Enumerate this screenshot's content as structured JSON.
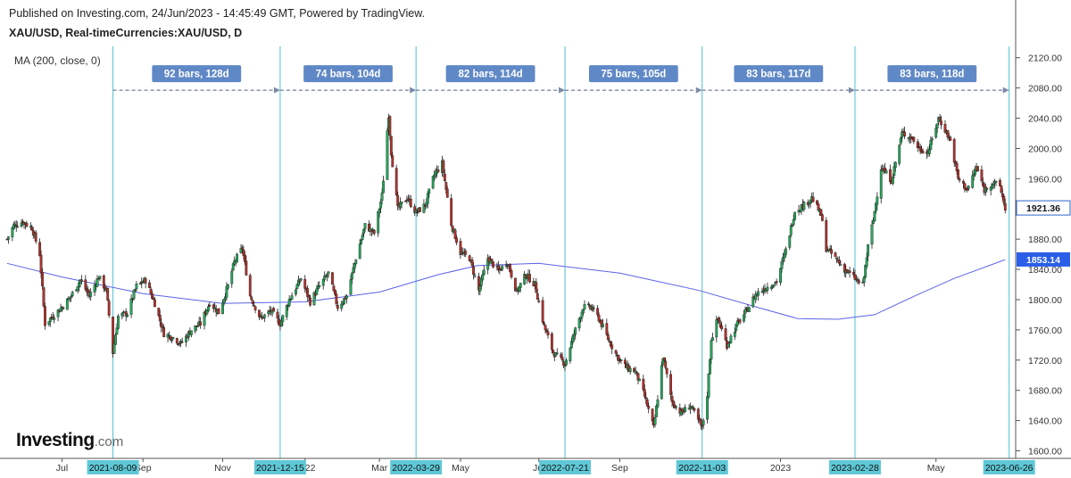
{
  "header": {
    "published": "Published on Investing.com, 24/Jun/2023 - 14:45:49 GMT, Powered by TradingView.",
    "symbol": "XAU/USD, Real-timeCurrencies:XAU/USD, D",
    "indicator": "MA (200, close, 0)"
  },
  "logo": {
    "main": "Investing",
    "suffix": ".com"
  },
  "colors": {
    "up": "#26a65b",
    "down": "#b0322c",
    "ma": "#5b63e8",
    "vline": "#4fc1d2",
    "range_box": "#5f88c6",
    "date_tag": "#5fc8d6",
    "price_tag": "#2b66c8",
    "ma_tag": "#2a5ee8"
  },
  "chart_data": {
    "type": "candlestick",
    "symbol": "XAU/USD",
    "timeframe": "D",
    "ylim": [
      1590,
      2135
    ],
    "xlim": [
      "2021-05-20",
      "2023-07-01"
    ],
    "y_ticks": [
      1600,
      1640,
      1680,
      1720,
      1760,
      1800,
      1840,
      1880,
      1920,
      1960,
      2000,
      2040,
      2080,
      2120
    ],
    "y_tick_labels": [
      "1600.00",
      "1640.00",
      "1680.00",
      "1720.00",
      "1760.00",
      "1800.00",
      "1840.00",
      "1880.00",
      "1920.00",
      "1960.00",
      "2000.00",
      "2040.00",
      "2080.00",
      "2120.00"
    ],
    "x_month_labels": [
      {
        "date": "2021-07-01",
        "label": "Jul"
      },
      {
        "date": "2021-09-01",
        "label": "Sep"
      },
      {
        "date": "2021-11-01",
        "label": "Nov"
      },
      {
        "date": "2022-01-03",
        "label": "2022"
      },
      {
        "date": "2022-03-01",
        "label": "Mar"
      },
      {
        "date": "2022-05-02",
        "label": "May"
      },
      {
        "date": "2022-07-01",
        "label": "Jul"
      },
      {
        "date": "2022-09-01",
        "label": "Sep"
      },
      {
        "date": "2023-01-02",
        "label": "2023"
      },
      {
        "date": "2023-05-01",
        "label": "May"
      }
    ],
    "vertical_markers": [
      "2021-08-09",
      "2021-12-15",
      "2022-03-29",
      "2022-07-21",
      "2022-11-03",
      "2023-02-28",
      "2023-06-26"
    ],
    "ranges": [
      {
        "from": "2021-08-09",
        "to": "2021-12-15",
        "label": "92 bars, 128d"
      },
      {
        "from": "2021-12-15",
        "to": "2022-03-29",
        "label": "74 bars, 104d"
      },
      {
        "from": "2022-03-29",
        "to": "2022-07-21",
        "label": "82 bars, 114d"
      },
      {
        "from": "2022-07-21",
        "to": "2022-11-03",
        "label": "75 bars, 105d"
      },
      {
        "from": "2022-11-03",
        "to": "2023-02-28",
        "label": "83 bars, 117d"
      },
      {
        "from": "2023-02-28",
        "to": "2023-06-26",
        "label": "83 bars, 118d"
      }
    ],
    "range_line_price": 2077,
    "last_price": "1921.36",
    "last_price_value": 1921.36,
    "ma_last": "1853.14",
    "ma_last_value": 1853.14,
    "close_path": [
      [
        "2021-05-20",
        1880
      ],
      [
        "2021-05-25",
        1898
      ],
      [
        "2021-06-01",
        1903
      ],
      [
        "2021-06-08",
        1895
      ],
      [
        "2021-06-14",
        1860
      ],
      [
        "2021-06-18",
        1768
      ],
      [
        "2021-06-25",
        1780
      ],
      [
        "2021-07-01",
        1790
      ],
      [
        "2021-07-08",
        1805
      ],
      [
        "2021-07-15",
        1826
      ],
      [
        "2021-07-22",
        1805
      ],
      [
        "2021-07-29",
        1830
      ],
      [
        "2021-08-04",
        1812
      ],
      [
        "2021-08-09",
        1730
      ],
      [
        "2021-08-13",
        1778
      ],
      [
        "2021-08-20",
        1782
      ],
      [
        "2021-08-27",
        1818
      ],
      [
        "2021-09-03",
        1826
      ],
      [
        "2021-09-10",
        1795
      ],
      [
        "2021-09-17",
        1755
      ],
      [
        "2021-09-24",
        1750
      ],
      [
        "2021-09-30",
        1742
      ],
      [
        "2021-10-08",
        1760
      ],
      [
        "2021-10-15",
        1768
      ],
      [
        "2021-10-22",
        1796
      ],
      [
        "2021-10-29",
        1783
      ],
      [
        "2021-11-05",
        1818
      ],
      [
        "2021-11-10",
        1850
      ],
      [
        "2021-11-16",
        1868
      ],
      [
        "2021-11-22",
        1805
      ],
      [
        "2021-11-30",
        1775
      ],
      [
        "2021-12-08",
        1785
      ],
      [
        "2021-12-15",
        1768
      ],
      [
        "2021-12-22",
        1800
      ],
      [
        "2021-12-31",
        1828
      ],
      [
        "2022-01-07",
        1797
      ],
      [
        "2022-01-14",
        1818
      ],
      [
        "2022-01-21",
        1835
      ],
      [
        "2022-01-28",
        1790
      ],
      [
        "2022-02-04",
        1805
      ],
      [
        "2022-02-11",
        1855
      ],
      [
        "2022-02-18",
        1898
      ],
      [
        "2022-02-25",
        1888
      ],
      [
        "2022-03-03",
        1938
      ],
      [
        "2022-03-08",
        2045
      ],
      [
        "2022-03-10",
        1995
      ],
      [
        "2022-03-15",
        1920
      ],
      [
        "2022-03-22",
        1935
      ],
      [
        "2022-03-29",
        1915
      ],
      [
        "2022-04-05",
        1925
      ],
      [
        "2022-04-12",
        1965
      ],
      [
        "2022-04-18",
        1980
      ],
      [
        "2022-04-25",
        1900
      ],
      [
        "2022-05-02",
        1862
      ],
      [
        "2022-05-09",
        1855
      ],
      [
        "2022-05-16",
        1812
      ],
      [
        "2022-05-23",
        1855
      ],
      [
        "2022-05-31",
        1838
      ],
      [
        "2022-06-07",
        1850
      ],
      [
        "2022-06-14",
        1810
      ],
      [
        "2022-06-21",
        1833
      ],
      [
        "2022-06-28",
        1820
      ],
      [
        "2022-07-05",
        1765
      ],
      [
        "2022-07-12",
        1730
      ],
      [
        "2022-07-21",
        1715
      ],
      [
        "2022-07-28",
        1755
      ],
      [
        "2022-08-04",
        1790
      ],
      [
        "2022-08-10",
        1790
      ],
      [
        "2022-08-16",
        1775
      ],
      [
        "2022-08-23",
        1748
      ],
      [
        "2022-08-30",
        1725
      ],
      [
        "2022-09-06",
        1710
      ],
      [
        "2022-09-13",
        1705
      ],
      [
        "2022-09-20",
        1672
      ],
      [
        "2022-09-27",
        1630
      ],
      [
        "2022-10-04",
        1725
      ],
      [
        "2022-10-11",
        1665
      ],
      [
        "2022-10-18",
        1650
      ],
      [
        "2022-10-25",
        1660
      ],
      [
        "2022-11-03",
        1630
      ],
      [
        "2022-11-07",
        1675
      ],
      [
        "2022-11-10",
        1748
      ],
      [
        "2022-11-15",
        1775
      ],
      [
        "2022-11-22",
        1740
      ],
      [
        "2022-11-30",
        1768
      ],
      [
        "2022-12-07",
        1785
      ],
      [
        "2022-12-14",
        1807
      ],
      [
        "2022-12-21",
        1815
      ],
      [
        "2022-12-30",
        1824
      ],
      [
        "2023-01-06",
        1865
      ],
      [
        "2023-01-13",
        1918
      ],
      [
        "2023-01-20",
        1925
      ],
      [
        "2023-01-26",
        1935
      ],
      [
        "2023-02-02",
        1912
      ],
      [
        "2023-02-06",
        1868
      ],
      [
        "2023-02-13",
        1855
      ],
      [
        "2023-02-20",
        1840
      ],
      [
        "2023-02-28",
        1828
      ],
      [
        "2023-03-06",
        1818
      ],
      [
        "2023-03-10",
        1870
      ],
      [
        "2023-03-14",
        1905
      ],
      [
        "2023-03-20",
        1975
      ],
      [
        "2023-03-28",
        1958
      ],
      [
        "2023-04-05",
        2020
      ],
      [
        "2023-04-12",
        2015
      ],
      [
        "2023-04-18",
        2000
      ],
      [
        "2023-04-25",
        1995
      ],
      [
        "2023-05-03",
        2040
      ],
      [
        "2023-05-08",
        2025
      ],
      [
        "2023-05-12",
        2010
      ],
      [
        "2023-05-18",
        1960
      ],
      [
        "2023-05-25",
        1945
      ],
      [
        "2023-06-01",
        1975
      ],
      [
        "2023-06-07",
        1945
      ],
      [
        "2023-06-13",
        1955
      ],
      [
        "2023-06-19",
        1950
      ],
      [
        "2023-06-23",
        1921
      ]
    ],
    "ma_path": [
      [
        "2021-05-20",
        1848
      ],
      [
        "2021-07-01",
        1830
      ],
      [
        "2021-09-01",
        1808
      ],
      [
        "2021-11-01",
        1795
      ],
      [
        "2022-01-03",
        1797
      ],
      [
        "2022-03-01",
        1810
      ],
      [
        "2022-04-15",
        1833
      ],
      [
        "2022-05-15",
        1845
      ],
      [
        "2022-07-01",
        1848
      ],
      [
        "2022-09-01",
        1835
      ],
      [
        "2022-11-01",
        1812
      ],
      [
        "2022-12-15",
        1790
      ],
      [
        "2023-01-15",
        1775
      ],
      [
        "2023-02-15",
        1774
      ],
      [
        "2023-03-15",
        1780
      ],
      [
        "2023-04-15",
        1805
      ],
      [
        "2023-05-15",
        1828
      ],
      [
        "2023-06-23",
        1853
      ]
    ]
  }
}
